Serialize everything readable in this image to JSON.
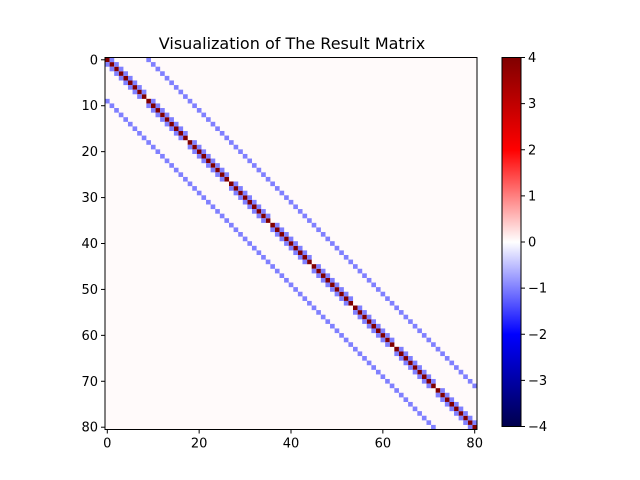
{
  "chart_data": {
    "type": "heatmap",
    "title": "Visualization of The Result Matrix",
    "matrix_size": 81,
    "grid_side": 9,
    "diagonals": [
      {
        "offset": 0,
        "value": 4
      },
      {
        "offset": 1,
        "value": -1,
        "skip_block_boundary": true
      },
      {
        "offset": -1,
        "value": -1,
        "skip_block_boundary": true
      },
      {
        "offset": 9,
        "value": -1
      },
      {
        "offset": -9,
        "value": -1
      }
    ],
    "x_ticks": [
      0,
      20,
      40,
      60,
      80
    ],
    "y_ticks": [
      0,
      10,
      20,
      30,
      40,
      50,
      60,
      70,
      80
    ],
    "x_tick_labels": [
      "0",
      "20",
      "40",
      "60",
      "80"
    ],
    "y_tick_labels": [
      "0",
      "10",
      "20",
      "30",
      "40",
      "50",
      "60",
      "70",
      "80"
    ],
    "colorbar": {
      "min": -4,
      "max": 4,
      "ticks": [
        4,
        3,
        2,
        1,
        0,
        -1,
        -2,
        -3,
        -4
      ],
      "tick_labels": [
        "4",
        "3",
        "2",
        "1",
        "0",
        "−1",
        "−2",
        "−3",
        "−4"
      ],
      "colormap": "seismic",
      "colors": [
        "#00004c",
        "#0000ff",
        "#ffffff",
        "#ff0000",
        "#800000"
      ]
    },
    "colors": {
      "background_cell": "#fffafa",
      "frame": "#000000"
    }
  }
}
